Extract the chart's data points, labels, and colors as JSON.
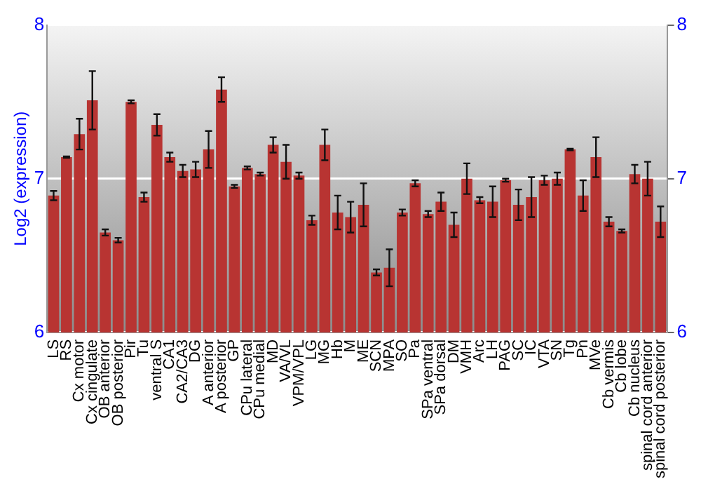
{
  "chart_data": {
    "type": "bar",
    "ylabel": "Log2 (expression)",
    "categories": [
      "LS",
      "RS",
      "Cx motor",
      "Cx cingulate",
      "OB anterior",
      "OB posterior",
      "Pir",
      "Tu",
      "ventral S",
      "CA1",
      "CA2/CA3",
      "DG",
      "A anterior",
      "A posterior",
      "GP",
      "CPu lateral",
      "CPu medial",
      "MD",
      "VA/VL",
      "VPM/VPL",
      "LG",
      "MG",
      "Hb",
      "M",
      "ME",
      "SCN",
      "MPA",
      "SO",
      "Pa",
      "SPa ventral",
      "SPa dorsal",
      "DM",
      "VMH",
      "Arc",
      "LH",
      "PAG",
      "SC",
      "IC",
      "VTA",
      "SN",
      "Tg",
      "Pn",
      "MVe",
      "Cb vermis",
      "Cb lobe",
      "Cb nucleus",
      "spinal cord anterior",
      "spinal cord posterior"
    ],
    "values": [
      6.89,
      7.14,
      7.29,
      7.51,
      6.65,
      6.6,
      7.5,
      6.88,
      7.35,
      7.14,
      7.05,
      7.06,
      7.19,
      7.58,
      6.95,
      7.07,
      7.03,
      7.22,
      7.11,
      7.02,
      6.73,
      7.22,
      6.78,
      6.75,
      6.83,
      6.39,
      6.42,
      6.78,
      6.97,
      6.77,
      6.85,
      6.7,
      7.0,
      6.86,
      6.85,
      6.99,
      6.83,
      6.88,
      6.99,
      7.0,
      7.19,
      6.89,
      7.14,
      6.72,
      6.66,
      7.03,
      7.0,
      6.72
    ],
    "errors": [
      0.03,
      0.005,
      0.1,
      0.19,
      0.02,
      0.015,
      0.01,
      0.03,
      0.07,
      0.03,
      0.04,
      0.05,
      0.12,
      0.08,
      0.01,
      0.01,
      0.01,
      0.05,
      0.11,
      0.02,
      0.03,
      0.1,
      0.11,
      0.1,
      0.14,
      0.02,
      0.12,
      0.02,
      0.02,
      0.02,
      0.06,
      0.08,
      0.1,
      0.02,
      0.1,
      0.01,
      0.1,
      0.13,
      0.03,
      0.04,
      0.005,
      0.1,
      0.13,
      0.03,
      0.01,
      0.06,
      0.11,
      0.1
    ],
    "color": "#b83432",
    "ylim": [
      6,
      8
    ],
    "yticks": [
      6,
      7,
      8
    ],
    "y2lim": [
      6,
      8
    ],
    "y2ticks": [
      6,
      7,
      8
    ],
    "grid": "y"
  }
}
